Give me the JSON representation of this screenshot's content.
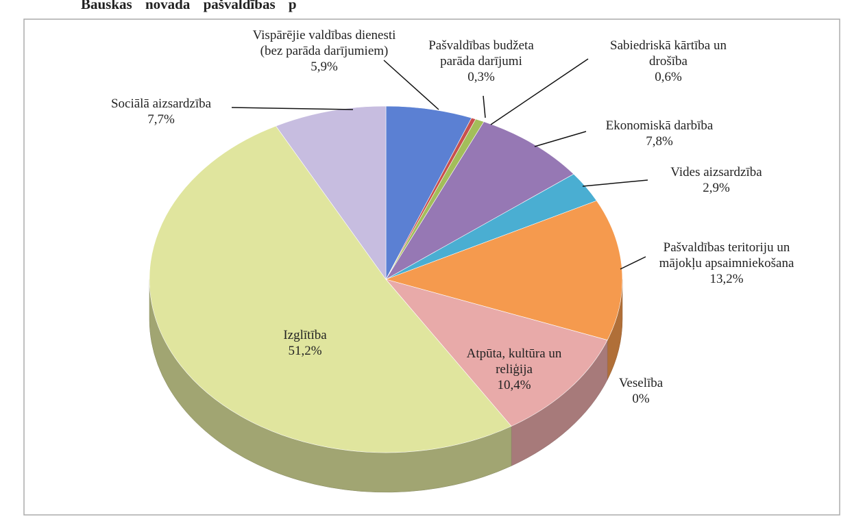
{
  "chart_data": {
    "type": "pie",
    "title": "Bauskas novada pašvaldības p",
    "categories": [
      "Vispārējie valdības dienesti (bez parāda darījumiem)",
      "Pašvaldības budžeta parāda darījumi",
      "Sabiedriskā kārtība un drošība",
      "Ekonomiskā darbība",
      "Vides aizsardzība",
      "Pašvaldības teritoriju un mājokļu apsaimniekošana",
      "Veselība",
      "Atpūta, kultūra un reliģija",
      "Izglītība",
      "Sociālā aizsardzība"
    ],
    "values": [
      5.9,
      0.3,
      0.6,
      7.8,
      2.9,
      13.2,
      0,
      10.4,
      51.2,
      7.7
    ],
    "value_labels": [
      "5,9%",
      "0,3%",
      "0,6%",
      "7,8%",
      "2,9%",
      "13,2%",
      "0%",
      "10,4%",
      "51,2%",
      "7,7%"
    ],
    "colors": [
      "#5b80d3",
      "#c8504d",
      "#a3be5a",
      "#9678b4",
      "#4aaed2",
      "#f59a4e",
      "#b25a5a",
      "#e8aaa9",
      "#e0e59e",
      "#c7bde0"
    ]
  }
}
